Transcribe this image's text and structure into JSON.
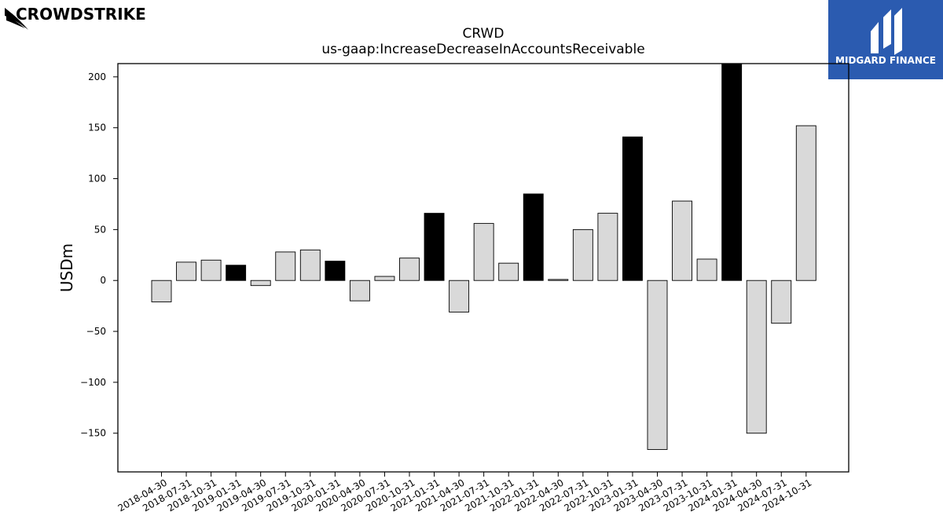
{
  "branding": {
    "company_logo_text": "CROWDSTRIKE",
    "publisher_logo_text": "MIDGARD FINANCE",
    "publisher_color": "#2b5bb0"
  },
  "chart_data": {
    "type": "bar",
    "title": "CRWD",
    "subtitle": "us-gaap:IncreaseDecreaseInAccountsReceivable",
    "xlabel": "",
    "ylabel": "USDm",
    "ylim": [
      -188,
      213
    ],
    "yticks": [
      200,
      150,
      100,
      50,
      0,
      -50,
      -100,
      -150
    ],
    "ytick_labels": [
      "200",
      "150",
      "100",
      "50",
      "0",
      "−50",
      "−100",
      "−150"
    ],
    "grid": false,
    "legend": "none",
    "colors": {
      "quarter": "#d9d9d9",
      "fiscal_year_end": "#000000",
      "edge": "#000000"
    },
    "categories": [
      "2018-04-30",
      "2018-07-31",
      "2018-10-31",
      "2019-01-31",
      "2019-04-30",
      "2019-07-31",
      "2019-10-31",
      "2020-01-31",
      "2020-04-30",
      "2020-07-31",
      "2020-10-31",
      "2021-01-31",
      "2021-04-30",
      "2021-07-31",
      "2021-10-31",
      "2022-01-31",
      "2022-04-30",
      "2022-07-31",
      "2022-10-31",
      "2023-01-31",
      "2023-04-30",
      "2023-07-31",
      "2023-10-31",
      "2024-01-31",
      "2024-04-30",
      "2024-07-31",
      "2024-10-31"
    ],
    "values": [
      -21,
      18,
      20,
      15,
      -5,
      28,
      30,
      19,
      -20,
      4,
      22,
      66,
      -31,
      56,
      17,
      85,
      1,
      50,
      66,
      141,
      -166,
      78,
      21,
      219,
      -150,
      -42,
      152
    ],
    "highlight": [
      false,
      false,
      false,
      true,
      false,
      false,
      false,
      true,
      false,
      false,
      false,
      true,
      false,
      false,
      false,
      true,
      false,
      false,
      false,
      true,
      false,
      false,
      false,
      true,
      false,
      false,
      false
    ]
  }
}
